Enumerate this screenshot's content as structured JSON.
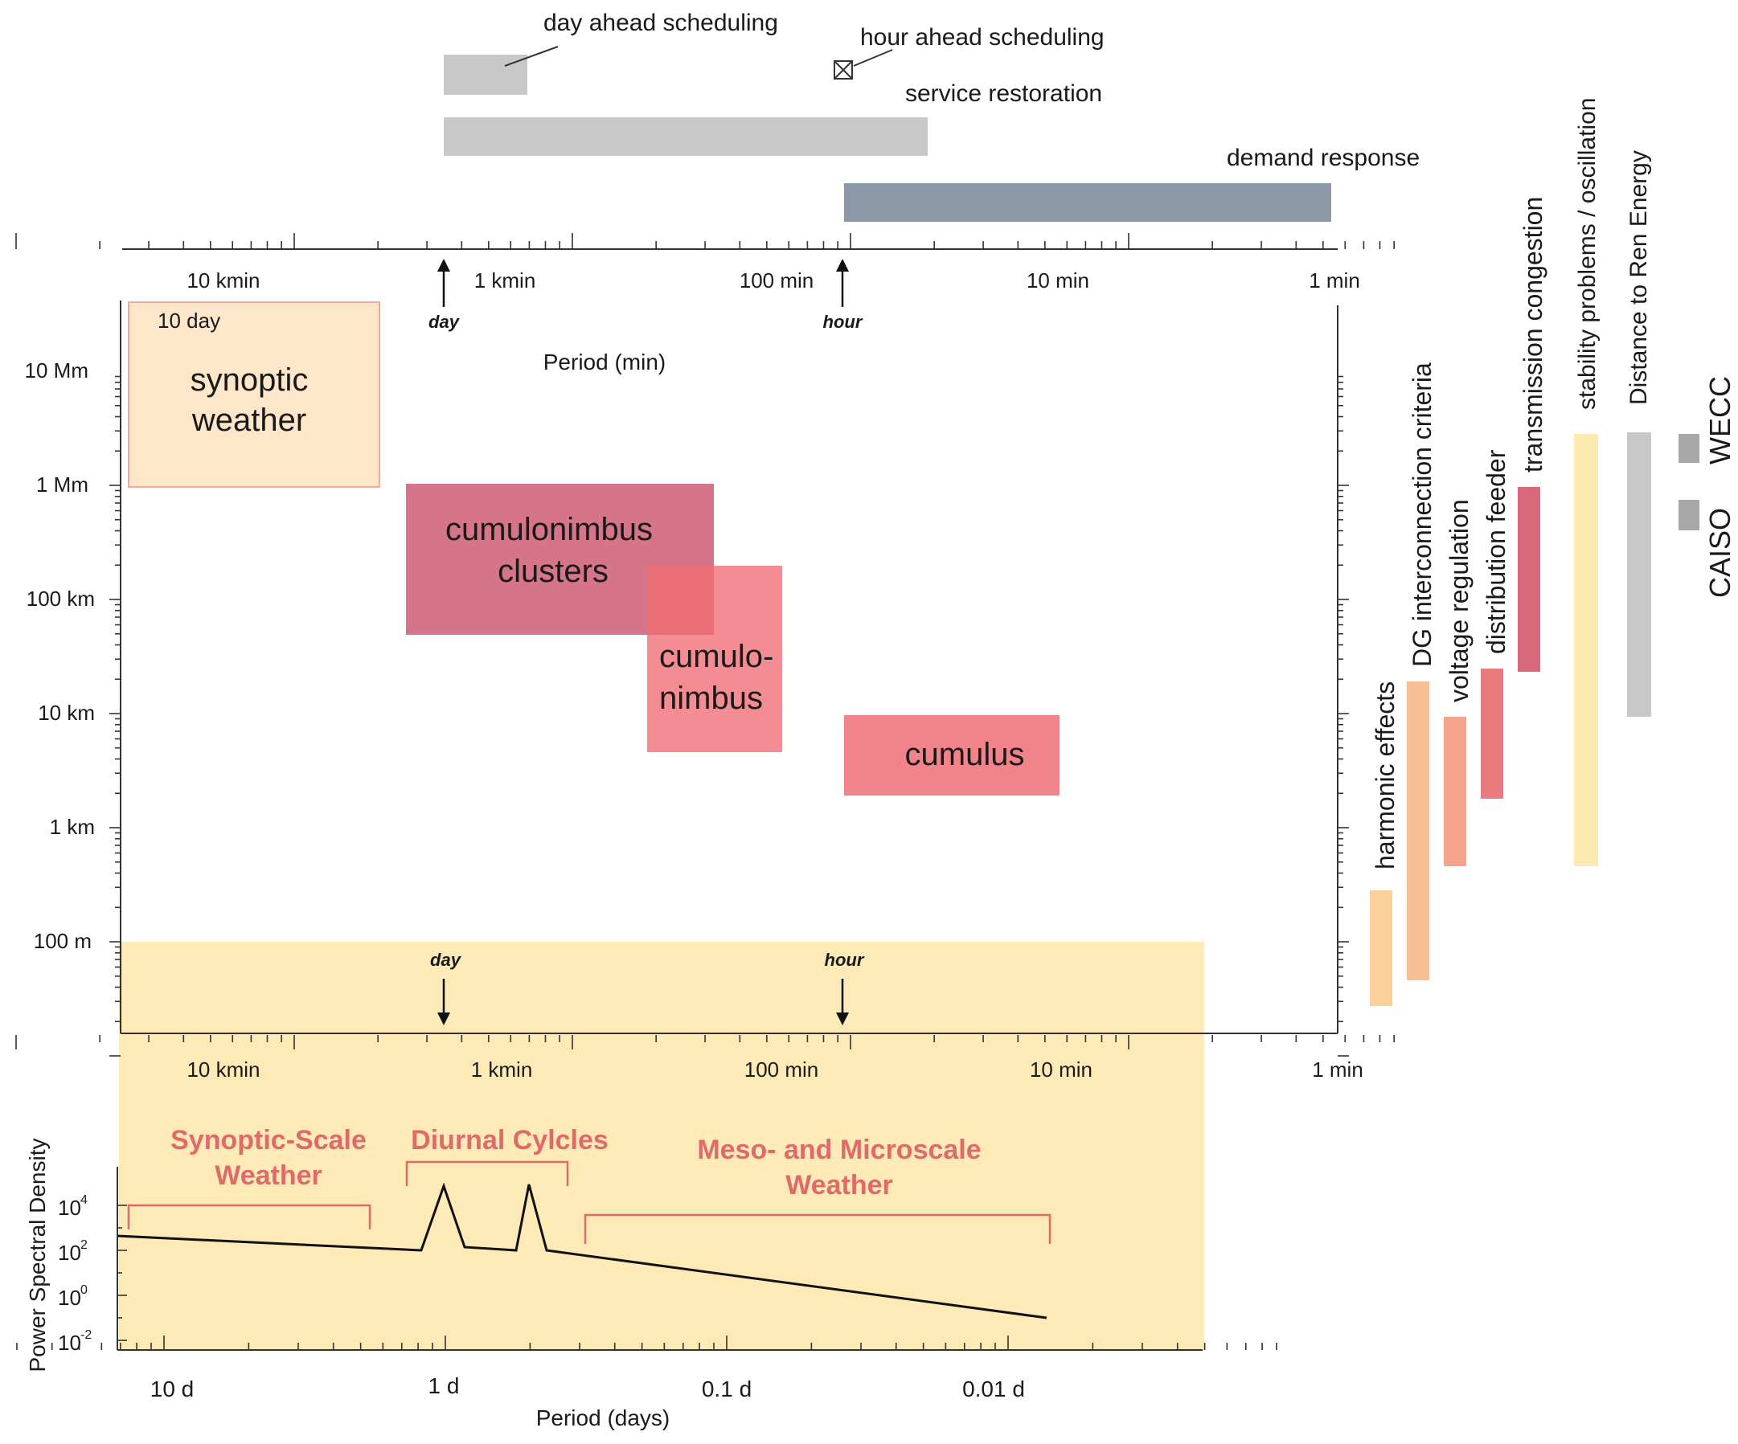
{
  "schedules": {
    "day_ahead": "day ahead scheduling",
    "hour_ahead": "hour ahead scheduling",
    "service_restoration": "service restoration",
    "demand_response": "demand response"
  },
  "top_axis": {
    "ticks": [
      "10 kmin",
      "1 kmin",
      "100  min",
      "10  min",
      "1  min"
    ],
    "day_marker": "day",
    "hour_marker": "hour",
    "label": "Period (min)"
  },
  "left_axis": {
    "ticks": [
      "10 Mm",
      "1 Mm",
      "100  km",
      "10  km",
      "1  km",
      "100 m"
    ]
  },
  "weather": {
    "ten_day": "10 day",
    "synoptic": [
      "synoptic",
      "weather"
    ],
    "cb_clusters": [
      "cumulonimbus",
      "clusters"
    ],
    "cb": [
      "cumulo-",
      "nimbus"
    ],
    "cumulus": "cumulus"
  },
  "grid_issues": [
    {
      "label": "harmonic effects",
      "color": "#fbd09a"
    },
    {
      "label": "DG interconnection criteria",
      "color": "#f9bf95"
    },
    {
      "label": "voltage regulation",
      "color": "#f7a48c"
    },
    {
      "label": "distribution feeder",
      "color": "#e97b7f"
    },
    {
      "label": "transmission congestion",
      "color": "#d9697a"
    },
    {
      "label": "stability problems / oscillation",
      "color": "#fdeab0"
    },
    {
      "label": "Distance to Ren Energy",
      "color": "#c8c8c8"
    }
  ],
  "regions": {
    "wecc": "WECC",
    "caiso": "CAISO"
  },
  "bottom": {
    "mid_ticks": [
      "10 kmin",
      "1 kmin",
      "100  min",
      "10  min",
      "1  min"
    ],
    "day_marker": "day",
    "hour_marker": "hour",
    "synoptic_title": [
      "Synoptic-Scale",
      "Weather"
    ],
    "diurnal_title": "Diurnal Cylcles",
    "meso_title": [
      "Meso- and Microscale",
      "Weather"
    ],
    "ylabel": "Power Spectral Density",
    "yticks": [
      "10",
      "10",
      "10",
      "10"
    ],
    "yexp": [
      "4",
      "2",
      "0",
      "-2"
    ],
    "xticks": [
      "10 d",
      "1 d",
      "0.1 d",
      "0.01 d"
    ],
    "xlabel": "Period (days)"
  },
  "colors": {
    "schedule_bar": "#c8c8c8",
    "demand_bar": "#8e99a7",
    "synoptic_fill": "#fde6ca",
    "synoptic_border": "#f4a79c",
    "cb_clusters": "#cc536b",
    "cumulus": "#ef6d75",
    "background_band": "#fdeab7",
    "title_red": "#e06a6a"
  }
}
